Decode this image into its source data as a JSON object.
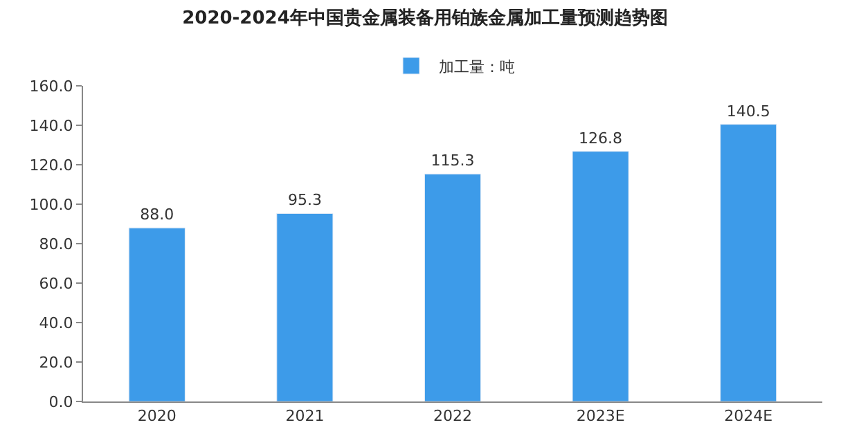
{
  "chart_data": {
    "type": "bar",
    "title": "2020-2024年中国贵金属装备用铂族金属加工量预测趋势图",
    "categories": [
      "2020",
      "2021",
      "2022",
      "2023E",
      "2024E"
    ],
    "series": [
      {
        "name": "加工量：吨",
        "color": "#3d9be9",
        "values": [
          88.0,
          95.3,
          115.3,
          126.8,
          140.5
        ],
        "value_labels": [
          "88.0",
          "95.3",
          "115.3",
          "126.8",
          "140.5"
        ]
      }
    ],
    "ylim": [
      0,
      160
    ],
    "yticks": [
      {
        "value": 0,
        "label": "0.0"
      },
      {
        "value": 20,
        "label": "20.0"
      },
      {
        "value": 40,
        "label": "40.0"
      },
      {
        "value": 60,
        "label": "60.0"
      },
      {
        "value": 80,
        "label": "80.0"
      },
      {
        "value": 100,
        "label": "100.0"
      },
      {
        "value": 120,
        "label": "120.0"
      },
      {
        "value": 140,
        "label": "140.0"
      },
      {
        "value": 160,
        "label": "160.0"
      }
    ],
    "legend": "top",
    "grid": false
  }
}
